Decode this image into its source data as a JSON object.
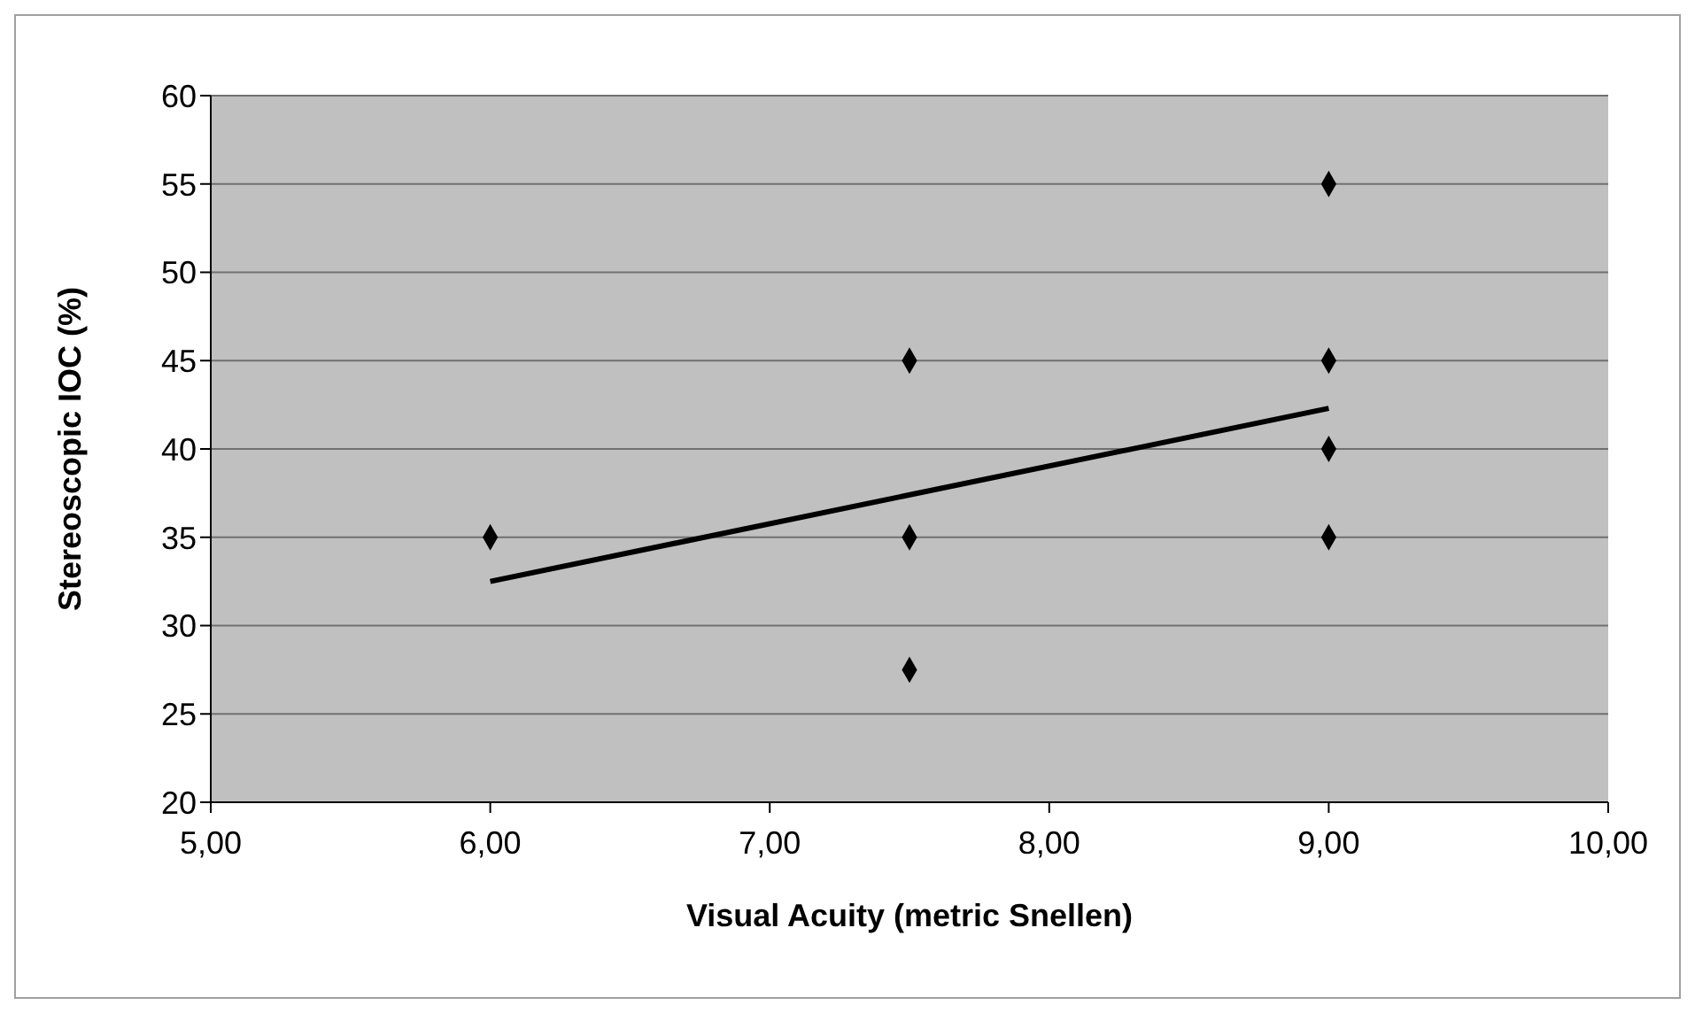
{
  "chart_data": {
    "type": "scatter",
    "xlabel": "Visual Acuity (metric Snellen)",
    "ylabel": "Stereoscopic IOC (%)",
    "series": [
      {
        "color": "#000000",
        "marker": "diamond",
        "x": [
          6,
          7.5,
          7.5,
          7.5,
          9,
          9,
          9,
          9
        ],
        "values": [
          35,
          45,
          35,
          27.5,
          55,
          45,
          40,
          35
        ]
      },
      {
        "type": "line",
        "color": "#000000",
        "x": [
          6,
          9
        ],
        "values": [
          32.5,
          42.3
        ]
      }
    ],
    "xlim": [
      5,
      10
    ],
    "xticks": [
      {
        "value": 5,
        "label": "5,00"
      },
      {
        "value": 6,
        "label": "6,00"
      },
      {
        "value": 7,
        "label": "7,00"
      },
      {
        "value": 8,
        "label": "8,00"
      },
      {
        "value": 9,
        "label": "9,00"
      },
      {
        "value": 10,
        "label": "10,00"
      }
    ],
    "ylim": [
      20,
      60
    ],
    "yticks": [
      20,
      25,
      30,
      35,
      40,
      45,
      50,
      55,
      60
    ],
    "grid": "y"
  }
}
